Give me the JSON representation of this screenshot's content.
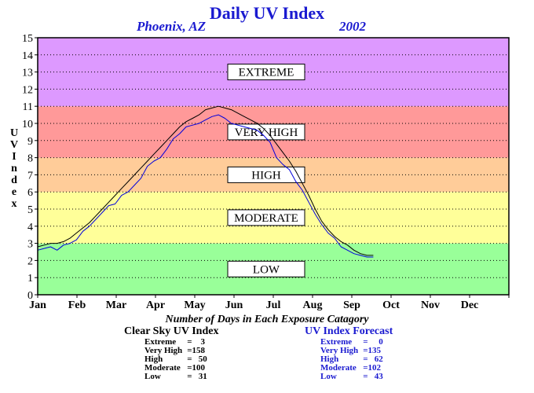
{
  "chart_data": {
    "type": "line",
    "title": "Daily UV Index",
    "subtitle_location": "Phoenix, AZ",
    "subtitle_year": "2002",
    "ylabel": "UV Index",
    "ylim": [
      0,
      15
    ],
    "yticks": [
      "0",
      "1",
      "2",
      "3",
      "4",
      "5",
      "6",
      "7",
      "8",
      "9",
      "10",
      "11",
      "12",
      "13",
      "14",
      "15"
    ],
    "xticks": [
      "Jan",
      "Feb",
      "Mar",
      "Apr",
      "May",
      "Jun",
      "Jul",
      "Aug",
      "Sep",
      "Oct",
      "Nov",
      "Dec"
    ],
    "grid": true,
    "bands": [
      {
        "label": "LOW",
        "from": 0,
        "to": 3,
        "color": "#99ff99"
      },
      {
        "label": "MODERATE",
        "from": 3,
        "to": 6,
        "color": "#ffff99"
      },
      {
        "label": "HIGH",
        "from": 6,
        "to": 8,
        "color": "#ffcc99"
      },
      {
        "label": "VERY HIGH",
        "from": 8,
        "to": 11,
        "color": "#ff9999"
      },
      {
        "label": "EXTREME",
        "from": 11,
        "to": 15,
        "color": "#dd99ff"
      }
    ],
    "series": [
      {
        "name": "Clear Sky UV Index",
        "color": "#000000",
        "day_step": 5,
        "values": [
          2.8,
          2.9,
          3.0,
          3.0,
          3.1,
          3.3,
          3.6,
          3.9,
          4.2,
          4.6,
          5.0,
          5.4,
          5.8,
          6.2,
          6.6,
          7.0,
          7.4,
          7.8,
          8.2,
          8.6,
          9.0,
          9.4,
          9.8,
          10.1,
          10.3,
          10.5,
          10.8,
          10.9,
          11.0,
          10.9,
          10.8,
          10.6,
          10.4,
          10.2,
          10.0,
          9.7,
          9.3,
          8.8,
          8.3,
          7.8,
          7.2,
          6.5,
          5.8,
          5.0,
          4.3,
          3.8,
          3.4,
          3.1,
          2.9,
          2.6,
          2.4,
          2.3,
          2.3
        ]
      },
      {
        "name": "UV Index Forecast",
        "color": "#0000dd",
        "day_step": 5,
        "values": [
          2.6,
          2.7,
          2.8,
          2.6,
          2.9,
          3.0,
          3.2,
          3.7,
          4.0,
          4.4,
          4.8,
          5.2,
          5.3,
          5.8,
          6.0,
          6.4,
          6.8,
          7.5,
          7.8,
          8.0,
          8.5,
          9.1,
          9.4,
          9.8,
          9.9,
          10.0,
          10.2,
          10.4,
          10.5,
          10.3,
          10.0,
          9.9,
          9.8,
          9.7,
          9.6,
          9.3,
          8.9,
          8.0,
          7.6,
          7.3,
          6.6,
          6.1,
          5.4,
          4.7,
          4.1,
          3.6,
          3.3,
          2.8,
          2.6,
          2.4,
          2.3,
          2.2,
          2.2
        ]
      }
    ]
  },
  "counts": {
    "title": "Number of Days in Each Exposure Catagory",
    "clear_sky": {
      "heading": "Clear Sky UV Index",
      "rows": [
        {
          "label": "Extreme",
          "value": "=    3"
        },
        {
          "label": "Very High",
          "value": "=158"
        },
        {
          "label": "High",
          "value": "=   50"
        },
        {
          "label": "Moderate",
          "value": "=100"
        },
        {
          "label": "Low",
          "value": "=   31"
        }
      ]
    },
    "forecast": {
      "heading": "UV Index Forecast",
      "rows": [
        {
          "label": "Extreme",
          "value": "=     0"
        },
        {
          "label": "Very High",
          "value": "=135"
        },
        {
          "label": "High",
          "value": "=   62"
        },
        {
          "label": "Moderate",
          "value": "=102"
        },
        {
          "label": "Low",
          "value": "=   43"
        }
      ]
    }
  }
}
